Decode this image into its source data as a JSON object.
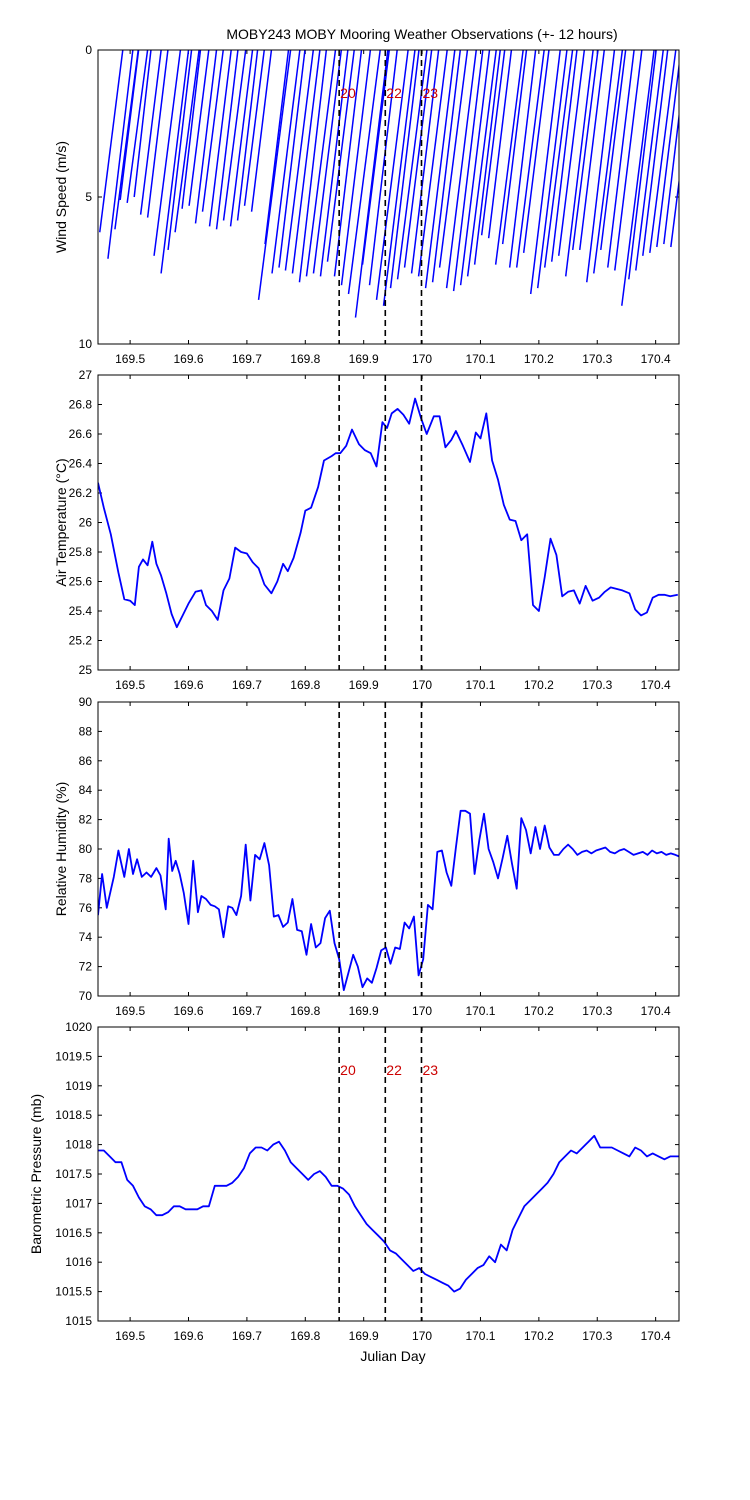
{
  "title": "MOBY243 MOBY Mooring Weather Observations (+- 12 hours)",
  "xlabel": "Julian Day",
  "colors": {
    "data": "#0000ff",
    "marker_text": "#cc0000",
    "axes": "#000000"
  },
  "markers": [
    {
      "x": 169.858,
      "label": "20"
    },
    {
      "x": 169.937,
      "label": "22"
    },
    {
      "x": 169.999,
      "label": "23"
    }
  ],
  "xlim": [
    169.445,
    170.44
  ],
  "xticks": [
    "169.5",
    "169.6",
    "169.7",
    "169.8",
    "169.9",
    "170",
    "170.1",
    "170.2",
    "170.3",
    "170.4"
  ],
  "chart_data": [
    {
      "type": "line",
      "ylabel": "Wind Speed (m/s)",
      "ylim": [
        0,
        10
      ],
      "y_reversed": true,
      "yticks": [
        "0",
        "5",
        "10"
      ],
      "marker_labels_shown": true,
      "series": [
        {
          "style": "stick",
          "x": [
            169.448,
            169.462,
            169.474,
            169.483,
            169.495,
            169.507,
            169.518,
            169.53,
            169.541,
            169.553,
            169.565,
            169.577,
            169.589,
            169.601,
            169.612,
            169.624,
            169.636,
            169.648,
            169.66,
            169.672,
            169.684,
            169.696,
            169.708,
            169.72,
            169.731,
            169.743,
            169.755,
            169.766,
            169.778,
            169.79,
            169.802,
            169.814,
            169.826,
            169.838,
            169.85,
            169.862,
            169.874,
            169.886,
            169.898,
            169.91,
            169.922,
            169.934,
            169.946,
            169.958,
            169.97,
            169.982,
            169.994,
            170.006,
            170.018,
            170.03,
            170.042,
            170.054,
            170.066,
            170.078,
            170.09,
            170.102,
            170.114,
            170.126,
            170.138,
            170.15,
            170.162,
            170.174,
            170.186,
            170.198,
            170.21,
            170.222,
            170.234,
            170.246,
            170.258,
            170.27,
            170.282,
            170.294,
            170.306,
            170.318,
            170.33,
            170.342,
            170.354,
            170.366,
            170.378,
            170.39,
            170.402,
            170.414,
            170.426
          ],
          "y": [
            6.2,
            7.1,
            6.1,
            5.1,
            5.2,
            5.0,
            5.6,
            5.7,
            7.0,
            7.6,
            6.8,
            6.2,
            5.4,
            5.3,
            5.9,
            5.5,
            6.0,
            6.1,
            5.8,
            6.0,
            5.8,
            5.3,
            5.5,
            8.5,
            6.6,
            7.6,
            7.4,
            7.5,
            7.6,
            7.9,
            7.7,
            7.6,
            7.7,
            7.2,
            7.7,
            8.0,
            8.3,
            9.1,
            7.3,
            8.0,
            8.5,
            8.7,
            8.1,
            7.8,
            7.4,
            7.6,
            7.7,
            8.1,
            7.9,
            7.4,
            8.1,
            8.2,
            8.0,
            7.7,
            7.3,
            6.3,
            6.4,
            7.3,
            6.6,
            7.4,
            7.4,
            6.9,
            8.3,
            8.1,
            7.4,
            7.2,
            7.0,
            7.7,
            6.8,
            6.8,
            7.9,
            7.6,
            6.8,
            7.4,
            7.5,
            8.7,
            7.8,
            7.5,
            7.0,
            6.9,
            6.7,
            6.6,
            6.7
          ],
          "ang": [
            7.2,
            6.8,
            7.4,
            7.0,
            7.6,
            6.5,
            7.1,
            6.9,
            7.3,
            7.0,
            6.7,
            7.5,
            6.6,
            7.2,
            6.9,
            7.3,
            7.0,
            6.8,
            7.4,
            7.1,
            6.7,
            7.2,
            7.0,
            7.3,
            6.9,
            7.1,
            6.8,
            7.2,
            7.0,
            6.6,
            7.3,
            7.1,
            6.9,
            7.2,
            6.8,
            7.0,
            7.4,
            6.9,
            7.1,
            6.7,
            7.2,
            7.0,
            6.8,
            7.3,
            7.1,
            6.9,
            7.2,
            7.0,
            6.8,
            7.3,
            7.1,
            6.9,
            7.0,
            7.2,
            6.8,
            7.1,
            6.9,
            7.3,
            7.0,
            6.8,
            7.2,
            7.1,
            6.9,
            7.0,
            7.3,
            6.8,
            7.1,
            6.9,
            7.2,
            7.0,
            6.8,
            7.3,
            7.1,
            6.9,
            7.0,
            7.2,
            6.8,
            7.1,
            6.9,
            7.3,
            7.0,
            6.8,
            7.2
          ]
        }
      ]
    },
    {
      "type": "line",
      "ylabel": "Air Temperature (°C)",
      "ylim": [
        25,
        27
      ],
      "yticks": [
        "25",
        "25.2",
        "25.4",
        "25.6",
        "25.8",
        "26",
        "26.2",
        "26.4",
        "26.6",
        "26.8",
        "27"
      ],
      "series": [
        {
          "x": [
            169.445,
            169.455,
            169.467,
            169.48,
            169.49,
            169.5,
            169.508,
            169.515,
            169.522,
            169.53,
            169.538,
            169.545,
            169.553,
            169.562,
            169.571,
            169.58,
            169.59,
            169.6,
            169.612,
            169.622,
            169.63,
            169.64,
            169.65,
            169.66,
            169.67,
            169.68,
            169.69,
            169.7,
            169.71,
            169.72,
            169.73,
            169.742,
            169.752,
            169.762,
            169.77,
            169.78,
            169.792,
            169.8,
            169.81,
            169.822,
            169.832,
            169.845,
            169.852,
            169.86,
            169.87,
            169.88,
            169.892,
            169.902,
            169.912,
            169.922,
            169.932,
            169.94,
            169.948,
            169.958,
            169.968,
            169.978,
            169.988,
            169.998,
            170.008,
            170.02,
            170.03,
            170.04,
            170.05,
            170.058,
            170.07,
            170.082,
            170.092,
            170.1,
            170.11,
            170.12,
            170.13,
            170.14,
            170.15,
            170.16,
            170.17,
            170.18,
            170.19,
            170.2,
            170.21,
            170.22,
            170.23,
            170.24,
            170.25,
            170.26,
            170.27,
            170.28,
            170.292,
            170.303,
            170.313,
            170.323,
            170.333,
            170.343,
            170.355,
            170.365,
            170.375,
            170.385,
            170.395,
            170.405,
            170.415,
            170.425,
            170.438
          ],
          "y": [
            26.27,
            26.1,
            25.92,
            25.66,
            25.48,
            25.47,
            25.44,
            25.7,
            25.75,
            25.71,
            25.87,
            25.72,
            25.64,
            25.52,
            25.38,
            25.29,
            25.37,
            25.45,
            25.53,
            25.54,
            25.44,
            25.4,
            25.34,
            25.54,
            25.62,
            25.83,
            25.8,
            25.79,
            25.73,
            25.69,
            25.58,
            25.52,
            25.6,
            25.72,
            25.67,
            25.76,
            25.93,
            26.08,
            26.1,
            26.24,
            26.42,
            26.45,
            26.47,
            26.47,
            26.52,
            26.63,
            26.53,
            26.49,
            26.47,
            26.38,
            26.68,
            26.64,
            26.74,
            26.77,
            26.73,
            26.67,
            26.84,
            26.71,
            26.6,
            26.72,
            26.72,
            26.51,
            26.56,
            26.62,
            26.52,
            26.41,
            26.61,
            26.57,
            26.74,
            26.42,
            26.29,
            26.12,
            26.02,
            26.01,
            25.88,
            25.92,
            25.44,
            25.4,
            25.63,
            25.89,
            25.78,
            25.5,
            25.53,
            25.54,
            25.45,
            25.57,
            25.47,
            25.49,
            25.53,
            25.56,
            25.55,
            25.54,
            25.52,
            25.41,
            25.37,
            25.39,
            25.49,
            25.51,
            25.51,
            25.5,
            25.51
          ]
        }
      ]
    },
    {
      "type": "line",
      "ylabel": "Relative Humidity (%)",
      "ylim": [
        70,
        90
      ],
      "yticks": [
        "70",
        "72",
        "74",
        "76",
        "78",
        "80",
        "82",
        "84",
        "86",
        "88",
        "90"
      ],
      "series": [
        {
          "x": [
            169.445,
            169.452,
            169.46,
            169.472,
            169.48,
            169.49,
            169.498,
            169.505,
            169.512,
            169.52,
            169.528,
            169.536,
            169.545,
            169.552,
            169.561,
            169.566,
            169.572,
            169.578,
            169.585,
            169.592,
            169.6,
            169.608,
            169.616,
            169.622,
            169.63,
            169.638,
            169.645,
            169.652,
            169.66,
            169.668,
            169.675,
            169.682,
            169.69,
            169.698,
            169.706,
            169.714,
            169.722,
            169.73,
            169.738,
            169.746,
            169.754,
            169.762,
            169.77,
            169.778,
            169.786,
            169.794,
            169.802,
            169.81,
            169.818,
            169.826,
            169.834,
            169.842,
            169.85,
            169.858,
            169.866,
            169.874,
            169.882,
            169.89,
            169.898,
            169.906,
            169.914,
            169.922,
            169.93,
            169.938,
            169.946,
            169.954,
            169.962,
            169.97,
            169.978,
            169.986,
            169.994,
            170.002,
            170.01,
            170.018,
            170.026,
            170.034,
            170.042,
            170.05,
            170.058,
            170.066,
            170.074,
            170.082,
            170.09,
            170.098,
            170.106,
            170.114,
            170.122,
            170.13,
            170.138,
            170.146,
            170.154,
            170.162,
            170.17,
            170.178,
            170.186,
            170.194,
            170.202,
            170.21,
            170.218,
            170.226,
            170.234,
            170.242,
            170.25,
            170.258,
            170.266,
            170.274,
            170.282,
            170.29,
            170.298,
            170.306,
            170.314,
            170.322,
            170.33,
            170.338,
            170.346,
            170.354,
            170.362,
            170.37,
            170.378,
            170.386,
            170.394,
            170.402,
            170.41,
            170.418,
            170.426,
            170.434,
            170.44
          ],
          "y": [
            75.5,
            78.3,
            76.0,
            78.1,
            79.9,
            78.1,
            80.0,
            78.3,
            79.3,
            78.1,
            78.4,
            78.1,
            78.7,
            78.2,
            75.9,
            80.7,
            78.5,
            79.2,
            78.3,
            77.0,
            74.9,
            79.2,
            75.7,
            76.8,
            76.6,
            76.2,
            76.1,
            75.9,
            74.0,
            76.1,
            76.0,
            75.5,
            76.8,
            80.3,
            76.5,
            79.6,
            79.3,
            80.4,
            78.9,
            75.4,
            75.5,
            74.7,
            75.0,
            76.6,
            74.5,
            74.4,
            72.8,
            74.9,
            73.3,
            73.6,
            75.3,
            75.8,
            73.6,
            72.5,
            70.4,
            71.6,
            72.8,
            72.0,
            70.6,
            71.2,
            70.9,
            71.9,
            73.1,
            73.3,
            72.2,
            73.3,
            73.2,
            75.0,
            74.6,
            75.4,
            71.4,
            72.5,
            76.2,
            75.9,
            79.8,
            79.9,
            78.4,
            77.5,
            80.1,
            82.6,
            82.6,
            82.4,
            78.3,
            80.6,
            82.4,
            80.0,
            79.1,
            78.0,
            79.4,
            80.9,
            79.0,
            77.3,
            82.1,
            81.3,
            79.7,
            81.5,
            80.0,
            81.6,
            80.1,
            79.6,
            79.6,
            80.0,
            80.3,
            80.0,
            79.6,
            79.8,
            79.9,
            79.7,
            79.9,
            80.0,
            80.1,
            79.8,
            79.7,
            79.9,
            80.0,
            79.8,
            79.6,
            79.7,
            79.8,
            79.6,
            79.9,
            79.7,
            79.8,
            79.6,
            79.7,
            79.6,
            79.5
          ]
        }
      ]
    },
    {
      "type": "line",
      "ylabel": "Barometric Pressure (mb)",
      "ylim": [
        1015,
        1020
      ],
      "yticks": [
        "1015",
        "1015.5",
        "1016",
        "1016.5",
        "1017",
        "1017.5",
        "1018",
        "1018.5",
        "1019",
        "1019.5",
        "1020"
      ],
      "marker_labels_shown": true,
      "series": [
        {
          "x": [
            169.445,
            169.455,
            169.465,
            169.475,
            169.485,
            169.495,
            169.505,
            169.515,
            169.525,
            169.535,
            169.545,
            169.555,
            169.565,
            169.575,
            169.585,
            169.595,
            169.605,
            169.615,
            169.625,
            169.635,
            169.645,
            169.655,
            169.665,
            169.675,
            169.685,
            169.695,
            169.705,
            169.715,
            169.725,
            169.735,
            169.745,
            169.755,
            169.765,
            169.775,
            169.785,
            169.795,
            169.805,
            169.815,
            169.825,
            169.835,
            169.845,
            169.855,
            169.865,
            169.875,
            169.885,
            169.895,
            169.905,
            169.915,
            169.925,
            169.935,
            169.945,
            169.955,
            169.965,
            169.975,
            169.985,
            169.995,
            170.005,
            170.015,
            170.025,
            170.035,
            170.045,
            170.055,
            170.065,
            170.075,
            170.085,
            170.095,
            170.105,
            170.115,
            170.125,
            170.135,
            170.145,
            170.155,
            170.165,
            170.175,
            170.185,
            170.195,
            170.205,
            170.215,
            170.225,
            170.235,
            170.245,
            170.255,
            170.265,
            170.275,
            170.285,
            170.295,
            170.305,
            170.315,
            170.325,
            170.335,
            170.345,
            170.355,
            170.365,
            170.375,
            170.385,
            170.395,
            170.405,
            170.415,
            170.425,
            170.435,
            170.44
          ],
          "y": [
            1017.9,
            1017.9,
            1017.8,
            1017.7,
            1017.7,
            1017.4,
            1017.3,
            1017.1,
            1016.95,
            1016.9,
            1016.8,
            1016.8,
            1016.85,
            1016.95,
            1016.95,
            1016.9,
            1016.9,
            1016.9,
            1016.95,
            1016.95,
            1017.3,
            1017.3,
            1017.3,
            1017.35,
            1017.45,
            1017.6,
            1017.85,
            1017.95,
            1017.95,
            1017.9,
            1018.0,
            1018.05,
            1017.9,
            1017.7,
            1017.6,
            1017.5,
            1017.4,
            1017.5,
            1017.55,
            1017.45,
            1017.3,
            1017.3,
            1017.25,
            1017.15,
            1016.95,
            1016.8,
            1016.65,
            1016.55,
            1016.45,
            1016.35,
            1016.2,
            1016.15,
            1016.05,
            1015.95,
            1015.85,
            1015.9,
            1015.8,
            1015.75,
            1015.7,
            1015.65,
            1015.6,
            1015.5,
            1015.55,
            1015.7,
            1015.8,
            1015.9,
            1015.95,
            1016.1,
            1016.0,
            1016.3,
            1016.2,
            1016.55,
            1016.75,
            1016.95,
            1017.05,
            1017.15,
            1017.25,
            1017.35,
            1017.5,
            1017.7,
            1017.8,
            1017.9,
            1017.85,
            1017.95,
            1018.05,
            1018.15,
            1017.95,
            1017.95,
            1017.95,
            1017.9,
            1017.85,
            1017.8,
            1017.95,
            1017.9,
            1017.8,
            1017.85,
            1017.8,
            1017.75,
            1017.8,
            1017.8,
            1017.8
          ]
        }
      ]
    }
  ]
}
